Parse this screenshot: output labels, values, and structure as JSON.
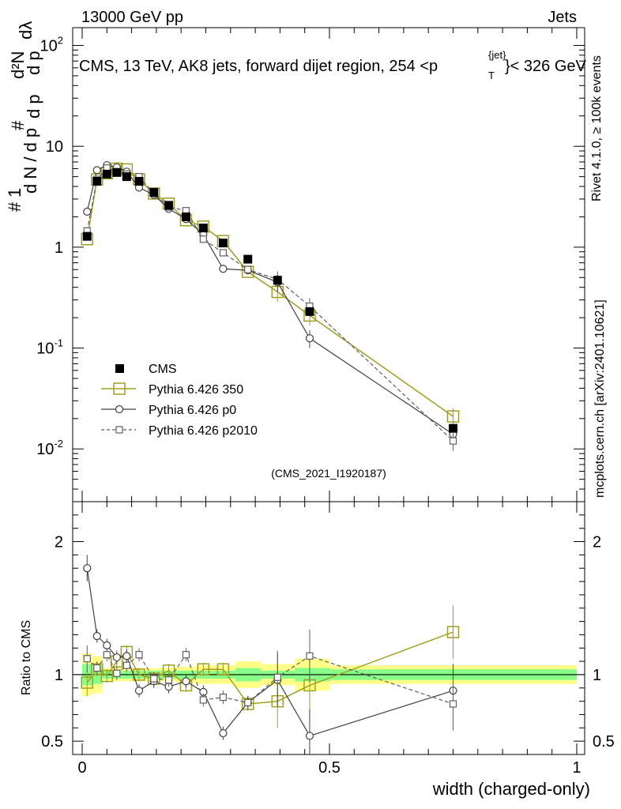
{
  "header": {
    "left": "13000 GeV pp",
    "right": "Jets"
  },
  "side_text": {
    "rivet": "Rivet 4.1.0, ≥ 100k events",
    "mcplots": "mcplots.cern.ch [arXiv:2401.10621]"
  },
  "colors": {
    "cms": "#000000",
    "p350": "#a0a020",
    "p0": "#404040",
    "p2010": "#606060",
    "band_outer": "#ffff88",
    "band_inner": "#88ff88"
  },
  "chart_data": {
    "type": "line",
    "title": "CMS, 13 TeV, AK8 jets, forward dijet region, 254 <p",
    "title_sup": "{jet}",
    "title_sub": "T",
    "title_end": "}< 326 GeV",
    "analysis_id": "(CMS_2021_I1920187)",
    "xlabel": "width (charged-only)",
    "ylabel_main": "# 1 / dN / dp_T # d^2N / dp_T dλ",
    "ylabel_ratio": "Ratio to CMS",
    "xlim": [
      0,
      1
    ],
    "ylim_main": [
      0.003,
      150
    ],
    "ylim_ratio": [
      0.4,
      2.3
    ],
    "x_ticks": [
      "0",
      "0.5",
      "1"
    ],
    "y_ticks_main": [
      "10^-2",
      "10^-1",
      "1",
      "10",
      "10^2"
    ],
    "y_ticks_ratio": [
      "0.5",
      "1",
      "2"
    ],
    "legend": [
      "CMS",
      "Pythia 6.426 350",
      "Pythia 6.426 p0",
      "Pythia 6.426 p2010"
    ],
    "x": [
      0.01,
      0.03,
      0.05,
      0.07,
      0.09,
      0.115,
      0.145,
      0.175,
      0.21,
      0.245,
      0.285,
      0.335,
      0.395,
      0.46,
      0.75
    ],
    "series": [
      {
        "name": "CMS",
        "values": [
          1.28,
          4.5,
          5.3,
          5.5,
          5.0,
          4.5,
          3.5,
          2.6,
          2.0,
          1.55,
          1.1,
          0.76,
          0.47,
          0.23,
          0.016
        ]
      },
      {
        "name": "Pythia 6.426 350",
        "values": [
          1.2,
          4.7,
          5.4,
          6.0,
          5.9,
          4.7,
          3.4,
          2.7,
          1.85,
          1.6,
          1.15,
          0.57,
          0.36,
          0.21,
          0.021
        ]
      },
      {
        "name": "Pythia 6.426 p0",
        "values": [
          2.25,
          5.8,
          6.5,
          6.2,
          5.6,
          3.9,
          3.3,
          2.4,
          1.9,
          1.33,
          0.61,
          0.59,
          0.45,
          0.125,
          0.014
        ]
      },
      {
        "name": "Pythia 6.426 p2010",
        "values": [
          1.45,
          4.7,
          6.1,
          5.6,
          5.3,
          5.0,
          3.4,
          2.5,
          2.3,
          1.2,
          0.88,
          0.6,
          0.48,
          0.26,
          0.012
        ]
      }
    ],
    "ratio_series": [
      {
        "name": "Pythia 6.426 350",
        "values": [
          0.94,
          1.04,
          0.99,
          1.1,
          1.17,
          1.0,
          0.97,
          1.03,
          0.92,
          1.04,
          1.04,
          0.78,
          0.8,
          0.92,
          1.32
        ]
      },
      {
        "name": "Pythia 6.426 p0",
        "values": [
          1.8,
          1.29,
          1.22,
          1.13,
          1.14,
          0.88,
          0.95,
          0.91,
          0.95,
          0.87,
          0.56,
          0.79,
          0.96,
          0.54,
          0.88
        ]
      },
      {
        "name": "Pythia 6.426 p2010",
        "values": [
          1.12,
          1.05,
          1.15,
          1.01,
          1.07,
          1.15,
          0.97,
          0.96,
          1.15,
          0.81,
          0.83,
          0.79,
          0.98,
          1.14,
          0.78
        ]
      }
    ]
  }
}
